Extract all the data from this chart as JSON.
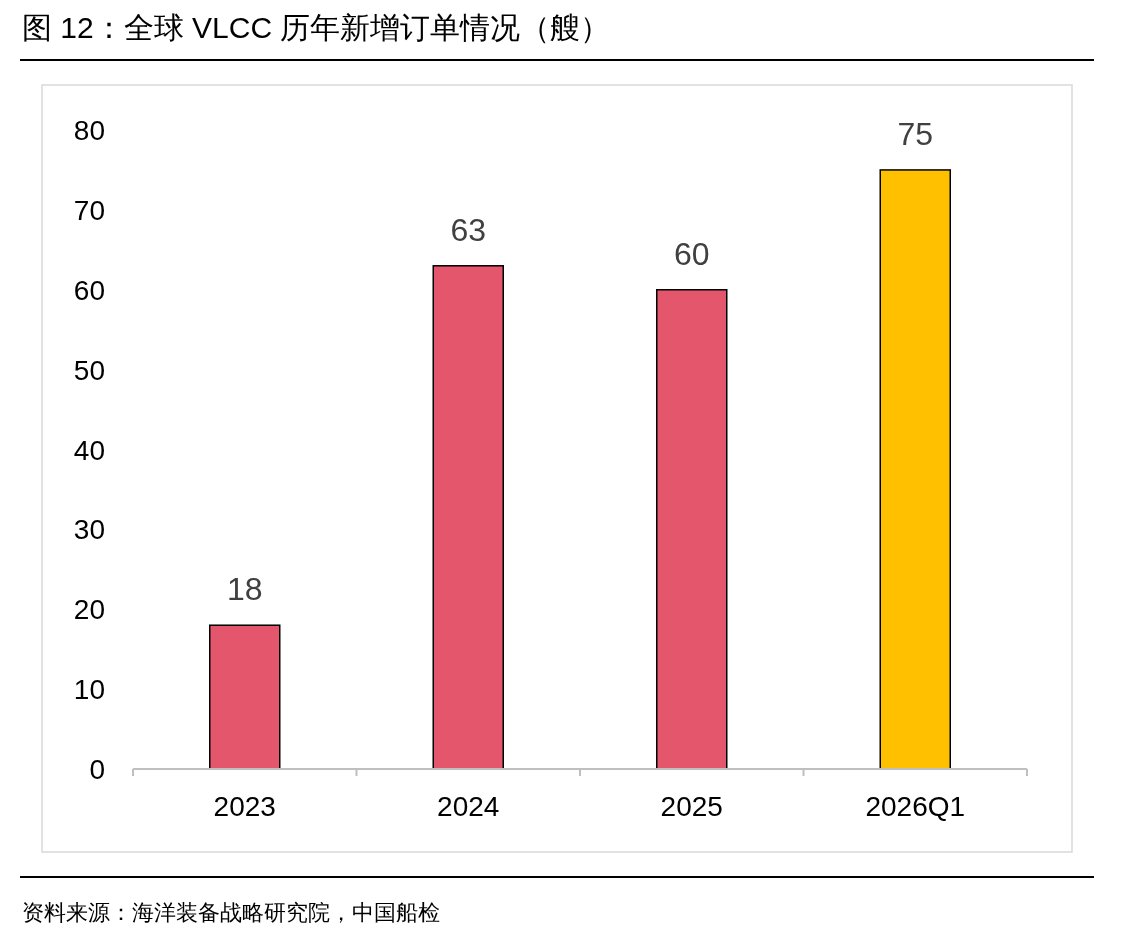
{
  "chart_data": {
    "type": "bar",
    "title": "图 12：全球 VLCC 历年新增订单情况（艘）",
    "categories": [
      "2023",
      "2024",
      "2025",
      "2026Q1"
    ],
    "values": [
      18,
      63,
      60,
      75
    ],
    "colors": [
      "#e4566b",
      "#e4566b",
      "#e4566b",
      "#ffc000"
    ],
    "ylim": [
      0,
      80
    ],
    "yticks": [
      0,
      10,
      20,
      30,
      40,
      50,
      60,
      70,
      80
    ],
    "data_labels": true,
    "grid": false,
    "annotations": [
      "资料来源：海洋装备战略研究院，中国船检"
    ]
  }
}
